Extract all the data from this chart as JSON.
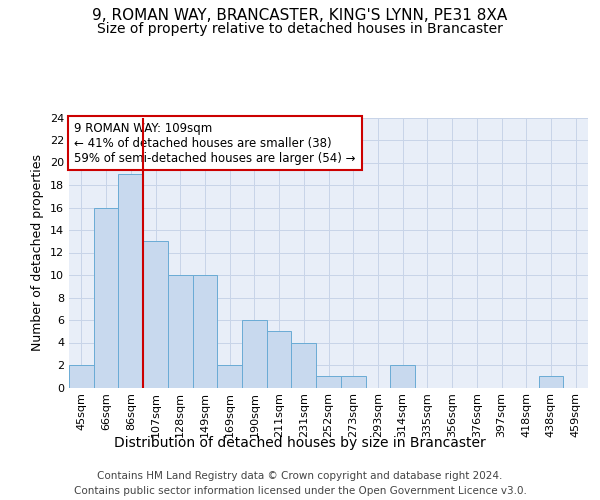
{
  "title_line1": "9, ROMAN WAY, BRANCASTER, KING'S LYNN, PE31 8XA",
  "title_line2": "Size of property relative to detached houses in Brancaster",
  "xlabel": "Distribution of detached houses by size in Brancaster",
  "ylabel": "Number of detached properties",
  "categories": [
    "45sqm",
    "66sqm",
    "86sqm",
    "107sqm",
    "128sqm",
    "149sqm",
    "169sqm",
    "190sqm",
    "211sqm",
    "231sqm",
    "252sqm",
    "273sqm",
    "293sqm",
    "314sqm",
    "335sqm",
    "356sqm",
    "376sqm",
    "397sqm",
    "418sqm",
    "438sqm",
    "459sqm"
  ],
  "values": [
    2,
    16,
    19,
    13,
    10,
    10,
    2,
    6,
    5,
    4,
    1,
    1,
    0,
    2,
    0,
    0,
    0,
    0,
    0,
    1,
    0
  ],
  "bar_color": "#c8d9ee",
  "bar_edge_color": "#6aabd5",
  "red_line_x": 2.5,
  "red_line_color": "#cc0000",
  "annotation_text": "9 ROMAN WAY: 109sqm\n← 41% of detached houses are smaller (38)\n59% of semi-detached houses are larger (54) →",
  "annotation_box_color": "white",
  "annotation_box_edge_color": "#cc0000",
  "ylim": [
    0,
    24
  ],
  "yticks": [
    0,
    2,
    4,
    6,
    8,
    10,
    12,
    14,
    16,
    18,
    20,
    22,
    24
  ],
  "grid_color": "#c8d4e8",
  "background_color": "#e8eef8",
  "footer_line1": "Contains HM Land Registry data © Crown copyright and database right 2024.",
  "footer_line2": "Contains public sector information licensed under the Open Government Licence v3.0.",
  "title_fontsize": 11,
  "subtitle_fontsize": 10,
  "footer_fontsize": 7.5,
  "ylabel_fontsize": 9,
  "xlabel_fontsize": 10,
  "tick_fontsize": 8,
  "annot_fontsize": 8.5
}
